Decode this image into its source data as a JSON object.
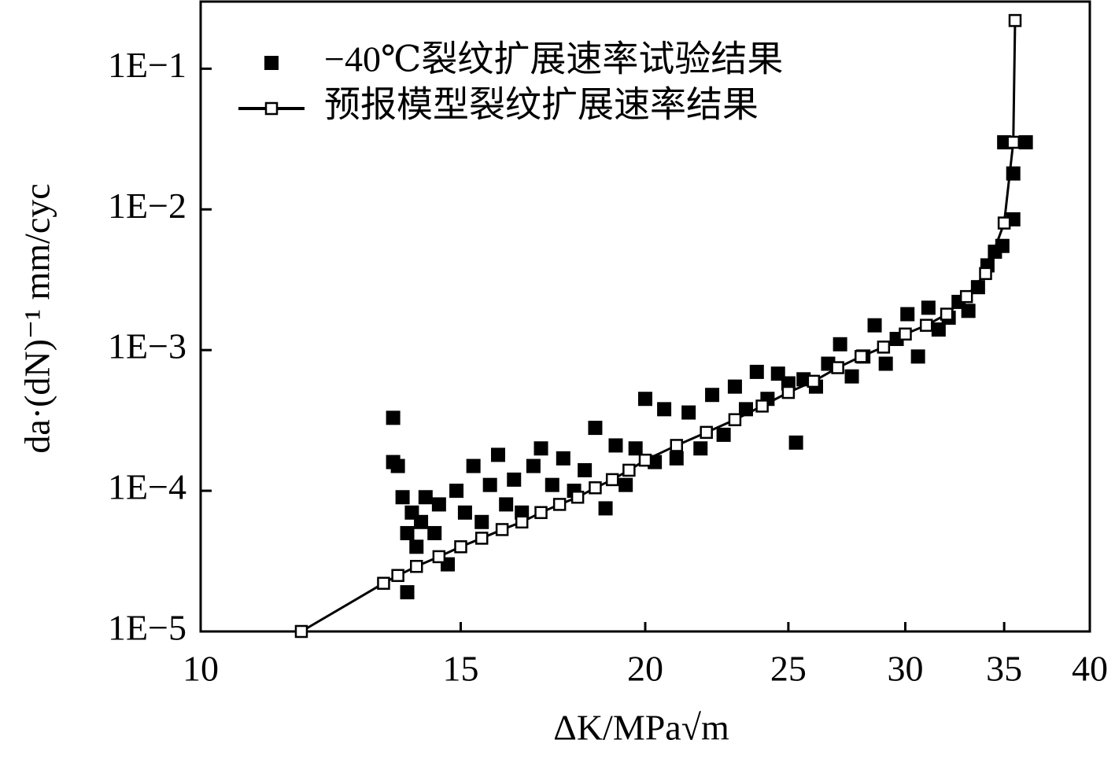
{
  "chart_data": {
    "type": "scatter",
    "x_label": "ΔK/MPa√m",
    "y_label": "da·(dN)⁻¹ mm/cyc",
    "x_scale": "log",
    "y_scale": "log",
    "xlim": [
      10,
      40
    ],
    "xticks": [
      10,
      15,
      20,
      25,
      30,
      35,
      40
    ],
    "ylim": [
      1e-05,
      0.3
    ],
    "yticks": [
      {
        "value": 1e-05,
        "label": "1E−5"
      },
      {
        "value": 0.0001,
        "label": "1E−4"
      },
      {
        "value": 0.001,
        "label": "1E−3"
      },
      {
        "value": 0.01,
        "label": "1E−2"
      },
      {
        "value": 0.1,
        "label": "1E−1"
      }
    ],
    "legend": "upper left",
    "series": [
      {
        "name": "−40℃裂纹扩展速率试验结果",
        "color": "#000000",
        "marker": "filled-square",
        "x": [
          13.5,
          13.5,
          13.6,
          13.8,
          13.7,
          13.8,
          13.9,
          14.0,
          14.1,
          14.2,
          14.4,
          14.5,
          14.7,
          14.9,
          15.1,
          15.3,
          15.5,
          15.7,
          15.9,
          16.1,
          16.3,
          16.5,
          16.8,
          17.0,
          17.3,
          17.6,
          17.9,
          18.2,
          18.5,
          18.8,
          19.1,
          19.4,
          19.7,
          20.0,
          20.3,
          20.6,
          21.0,
          21.4,
          21.8,
          22.2,
          22.6,
          23.0,
          23.4,
          23.8,
          24.2,
          24.6,
          25.0,
          25.3,
          25.6,
          26.1,
          26.6,
          27.1,
          27.6,
          28.1,
          28.6,
          29.1,
          29.6,
          30.1,
          30.6,
          31.1,
          31.6,
          32.1,
          32.6,
          33.1,
          33.6,
          34.1,
          34.5,
          34.9,
          35.0,
          35.5,
          35.5,
          36.2
        ],
        "values": [
          0.00033,
          0.00016,
          0.00015,
          1.9e-05,
          9e-05,
          5e-05,
          7e-05,
          4e-05,
          6e-05,
          9e-05,
          5e-05,
          8e-05,
          3e-05,
          0.0001,
          7e-05,
          0.00015,
          6e-05,
          0.00011,
          0.00018,
          8e-05,
          0.00012,
          7e-05,
          0.00015,
          0.0002,
          0.00011,
          0.00017,
          0.0001,
          0.00014,
          0.00028,
          7.5e-05,
          0.00021,
          0.00011,
          0.0002,
          0.00045,
          0.00016,
          0.00038,
          0.00017,
          0.00036,
          0.0002,
          0.00048,
          0.00025,
          0.00055,
          0.00038,
          0.0007,
          0.00045,
          0.00068,
          0.00058,
          0.00022,
          0.00062,
          0.00055,
          0.0008,
          0.0011,
          0.00065,
          0.0009,
          0.0015,
          0.0008,
          0.0012,
          0.0018,
          0.0009,
          0.002,
          0.0014,
          0.0017,
          0.0022,
          0.0019,
          0.0028,
          0.004,
          0.005,
          0.0055,
          0.03,
          0.018,
          0.0085,
          0.03
        ]
      },
      {
        "name": "预报模型裂纹扩展速率结果",
        "color": "#000000",
        "marker": "hollow-square",
        "x": [
          11.7,
          13.3,
          13.6,
          14.0,
          14.5,
          15.0,
          15.5,
          16.0,
          16.5,
          17.0,
          17.5,
          18.0,
          18.5,
          19.0,
          19.5,
          20.0,
          21.0,
          22.0,
          23.0,
          24.0,
          25.0,
          26.0,
          27.0,
          28.0,
          29.0,
          30.0,
          31.0,
          32.0,
          33.0,
          34.0,
          35.0,
          35.5,
          35.6
        ],
        "values": [
          1e-05,
          2.2e-05,
          2.5e-05,
          2.9e-05,
          3.4e-05,
          4e-05,
          4.6e-05,
          5.3e-05,
          6e-05,
          7e-05,
          8e-05,
          9e-05,
          0.000105,
          0.00012,
          0.00014,
          0.000165,
          0.00021,
          0.00026,
          0.00032,
          0.0004,
          0.0005,
          0.0006,
          0.00075,
          0.0009,
          0.00105,
          0.0013,
          0.0015,
          0.0018,
          0.0024,
          0.0035,
          0.008,
          0.03,
          0.22
        ]
      }
    ]
  }
}
